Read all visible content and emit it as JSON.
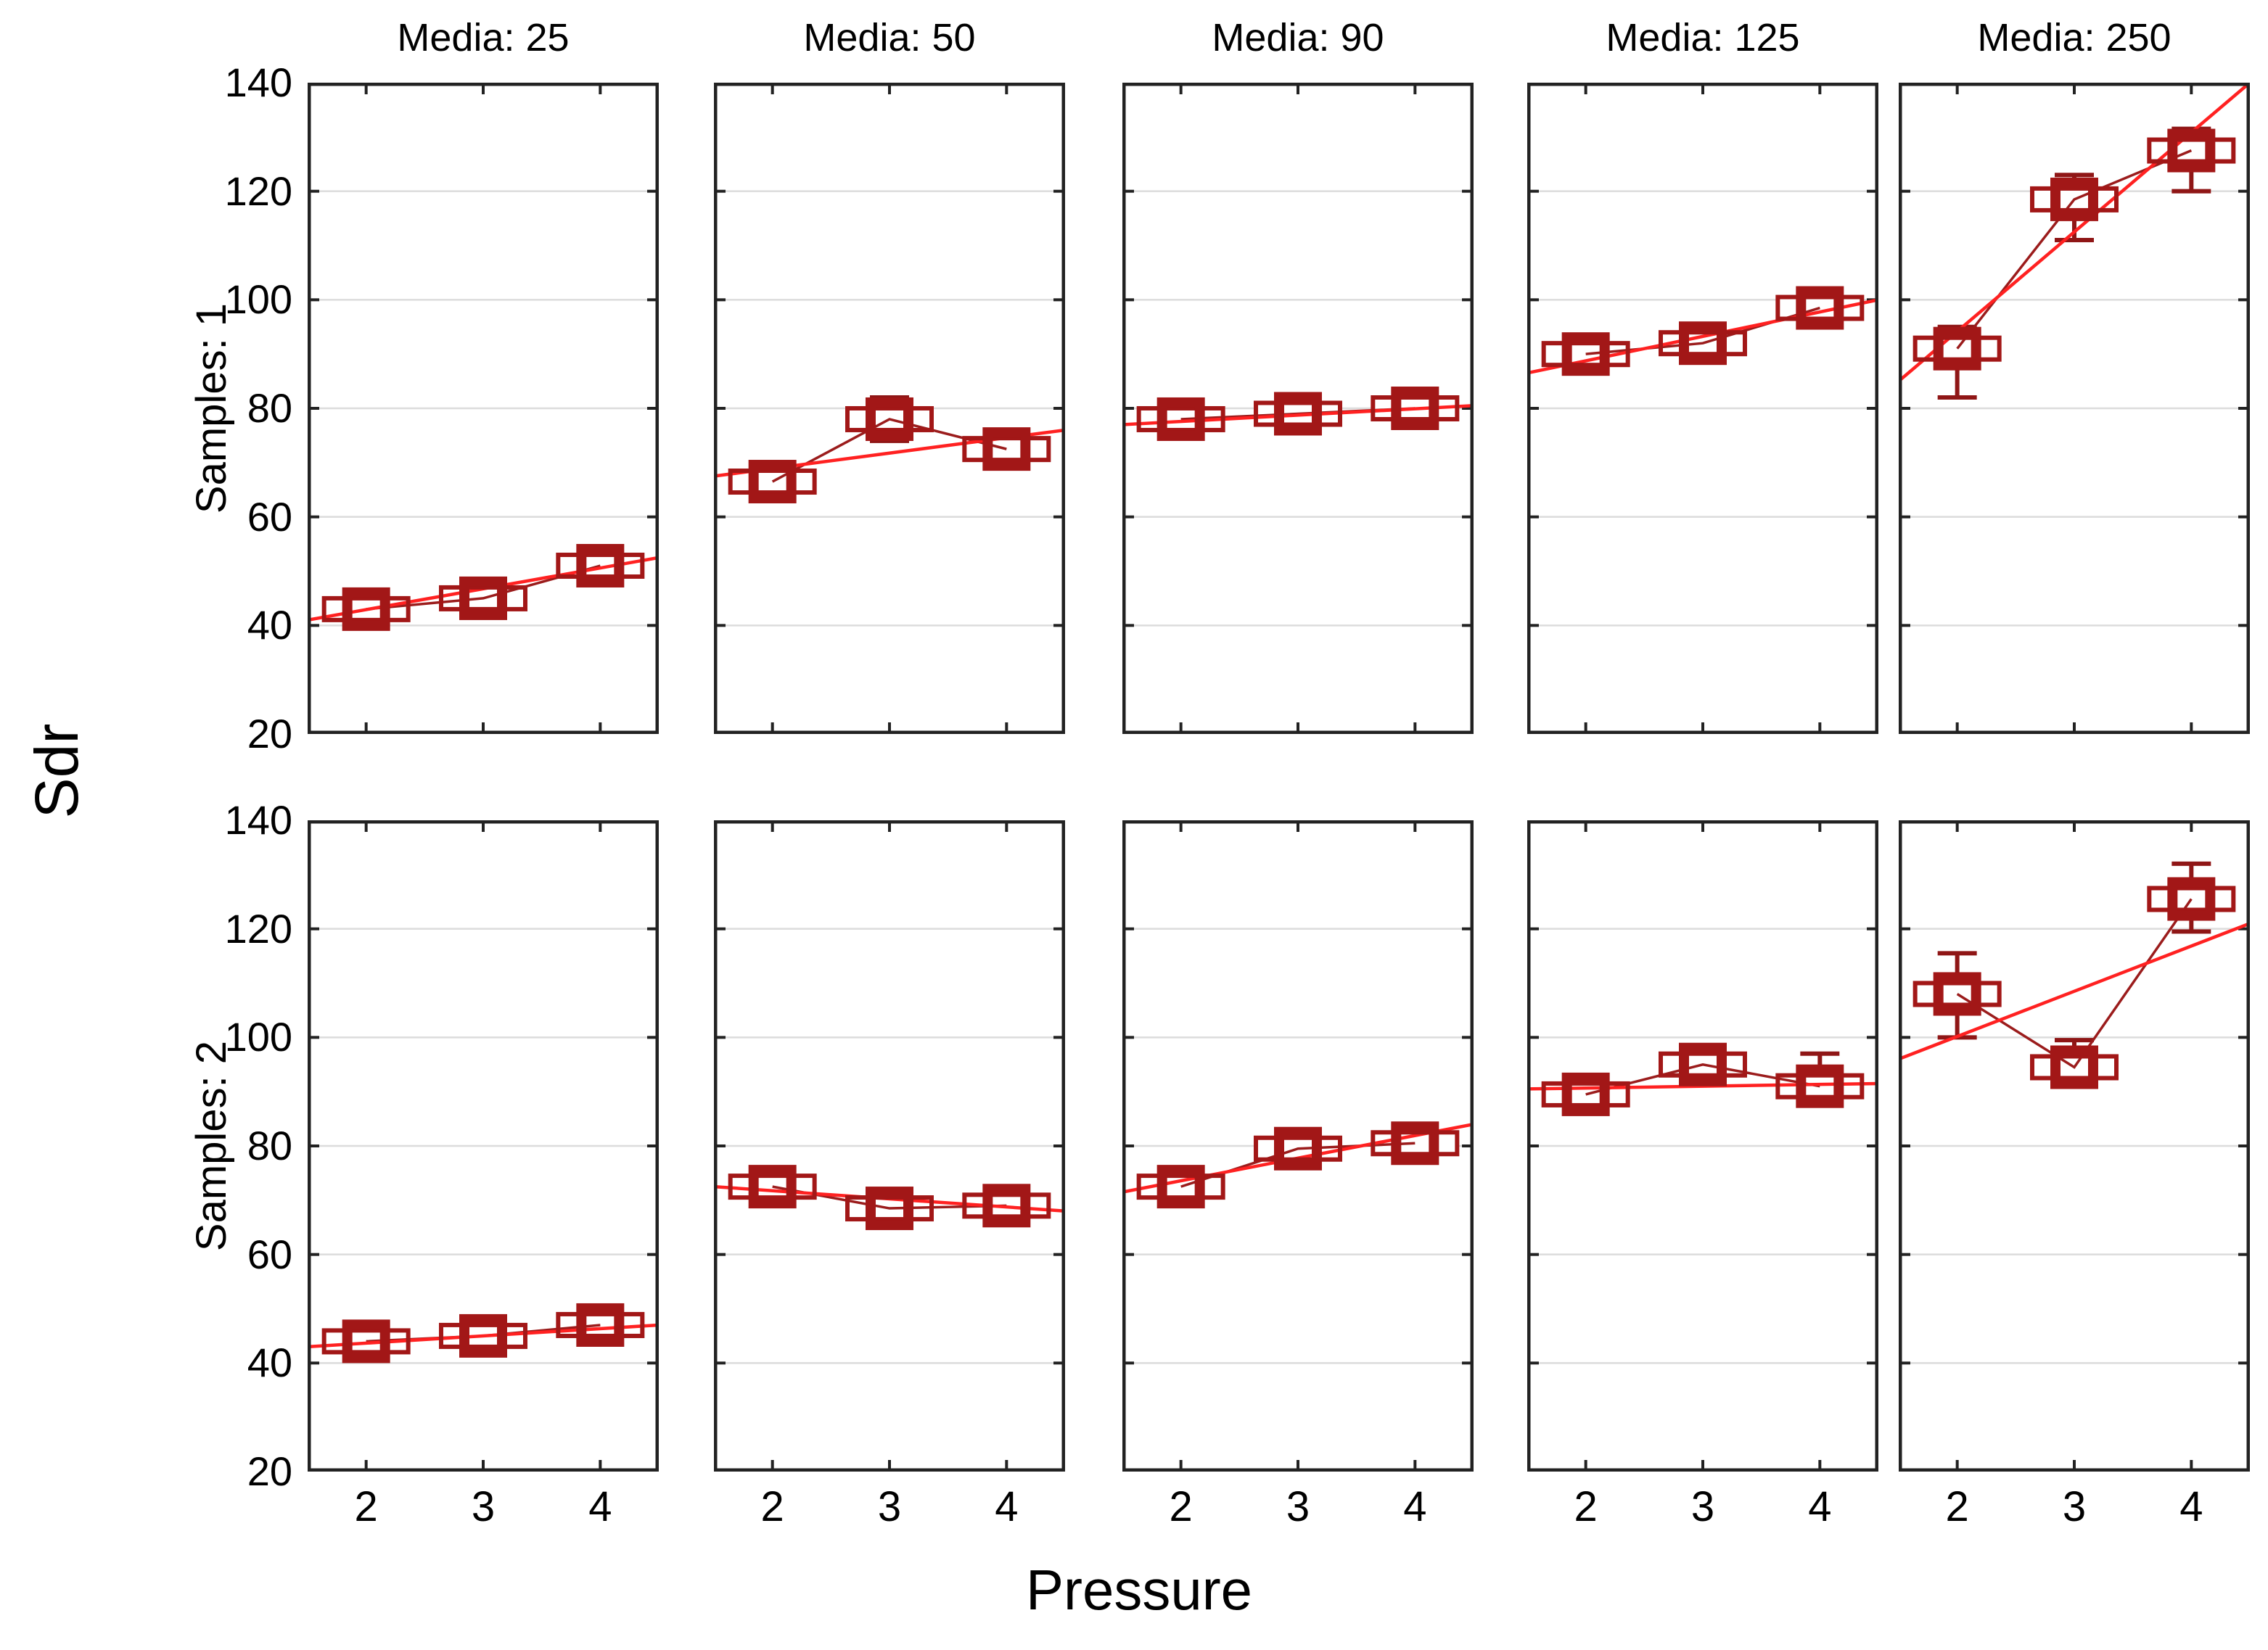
{
  "figure": {
    "ylabel": "Sdr",
    "xlabel": "Pressure",
    "row_labels": [
      "Samples: 1",
      "Samples: 2"
    ],
    "col_headers": [
      "Media: 25",
      "Media: 50",
      "Media: 90",
      "Media: 125",
      "Media: 250"
    ],
    "y_ticks": [
      140,
      120,
      100,
      80,
      60,
      40,
      20
    ],
    "x_ticks": [
      2,
      3,
      4
    ],
    "colors": {
      "marker": "#A21717",
      "whisker": "#8F1616",
      "connector": "#9B1C1C",
      "fit_line": "#FF2121",
      "grid": "#DCDCDC",
      "axis": "#222222",
      "background": "#FFFFFF"
    }
  },
  "chart_data": [
    {
      "type": "scatter",
      "row_label": "Samples: 1",
      "col_label": "Media: 25",
      "x": [
        2,
        3,
        4
      ],
      "y": [
        43,
        45,
        51
      ],
      "y_lo": [
        41,
        43,
        48.5
      ],
      "y_hi": [
        45,
        47,
        53.5
      ],
      "fit_y": [
        41,
        52.5
      ],
      "xlim": [
        1.5,
        4.5
      ],
      "ylim": [
        20,
        140
      ],
      "grid": true
    },
    {
      "type": "scatter",
      "row_label": "Samples: 1",
      "col_label": "Media: 50",
      "x": [
        2,
        3,
        4
      ],
      "y": [
        66.5,
        78,
        72.5
      ],
      "y_lo": [
        63,
        74,
        69
      ],
      "y_hi": [
        70,
        82,
        76
      ],
      "fit_y": [
        67.5,
        76
      ],
      "xlim": [
        1.5,
        4.5
      ],
      "ylim": [
        20,
        140
      ],
      "grid": true
    },
    {
      "type": "scatter",
      "row_label": "Samples: 1",
      "col_label": "Media: 90",
      "x": [
        2,
        3,
        4
      ],
      "y": [
        78,
        79,
        80
      ],
      "y_lo": [
        76,
        77,
        78
      ],
      "y_hi": [
        80,
        81,
        82
      ],
      "fit_y": [
        77,
        80.5
      ],
      "xlim": [
        1.5,
        4.5
      ],
      "ylim": [
        20,
        140
      ],
      "grid": true
    },
    {
      "type": "scatter",
      "row_label": "Samples: 1",
      "col_label": "Media: 125",
      "x": [
        2,
        3,
        4
      ],
      "y": [
        90,
        92,
        98.5
      ],
      "y_lo": [
        88,
        90,
        95
      ],
      "y_hi": [
        92,
        94,
        101
      ],
      "fit_y": [
        86.5,
        100
      ],
      "xlim": [
        1.5,
        4.5
      ],
      "ylim": [
        20,
        140
      ],
      "grid": true
    },
    {
      "type": "scatter",
      "row_label": "Samples: 1",
      "col_label": "Media: 250",
      "x": [
        2,
        3,
        4
      ],
      "y": [
        91,
        118.5,
        127.5
      ],
      "y_lo": [
        82,
        111,
        120
      ],
      "y_hi": [
        95,
        123,
        131.5
      ],
      "fit_y": [
        85,
        140
      ],
      "xlim": [
        1.5,
        4.5
      ],
      "ylim": [
        20,
        140
      ],
      "grid": true
    },
    {
      "type": "scatter",
      "row_label": "Samples: 2",
      "col_label": "Media: 25",
      "x": [
        2,
        3,
        4
      ],
      "y": [
        44,
        45,
        47
      ],
      "y_lo": [
        42,
        43,
        45
      ],
      "y_hi": [
        46,
        47,
        49
      ],
      "fit_y": [
        43,
        47
      ],
      "xlim": [
        1.5,
        4.5
      ],
      "ylim": [
        20,
        140
      ],
      "grid": true
    },
    {
      "type": "scatter",
      "row_label": "Samples: 2",
      "col_label": "Media: 50",
      "x": [
        2,
        3,
        4
      ],
      "y": [
        72.5,
        68.5,
        69
      ],
      "y_lo": [
        70,
        66,
        66.5
      ],
      "y_hi": [
        75,
        71,
        71.5
      ],
      "fit_y": [
        72.5,
        68
      ],
      "xlim": [
        1.5,
        4.5
      ],
      "ylim": [
        20,
        140
      ],
      "grid": true
    },
    {
      "type": "scatter",
      "row_label": "Samples: 2",
      "col_label": "Media: 90",
      "x": [
        2,
        3,
        4
      ],
      "y": [
        72.5,
        79.5,
        80.5
      ],
      "y_lo": [
        70,
        77,
        78
      ],
      "y_hi": [
        75,
        82,
        83
      ],
      "fit_y": [
        71.5,
        84
      ],
      "xlim": [
        1.5,
        4.5
      ],
      "ylim": [
        20,
        140
      ],
      "grid": true
    },
    {
      "type": "scatter",
      "row_label": "Samples: 2",
      "col_label": "Media: 125",
      "x": [
        2,
        3,
        4
      ],
      "y": [
        89.5,
        95,
        91
      ],
      "y_lo": [
        87.5,
        92.5,
        87.5
      ],
      "y_hi": [
        91.5,
        97.5,
        97
      ],
      "fit_y": [
        90.5,
        91.5
      ],
      "xlim": [
        1.5,
        4.5
      ],
      "ylim": [
        20,
        140
      ],
      "grid": true
    },
    {
      "type": "scatter",
      "row_label": "Samples: 2",
      "col_label": "Media: 250",
      "x": [
        2,
        3,
        4
      ],
      "y": [
        108,
        94.5,
        125.5
      ],
      "y_lo": [
        100,
        91,
        119.5
      ],
      "y_hi": [
        115.5,
        99.5,
        132
      ],
      "fit_y": [
        96,
        121
      ],
      "xlim": [
        1.5,
        4.5
      ],
      "ylim": [
        20,
        140
      ],
      "grid": true
    }
  ]
}
